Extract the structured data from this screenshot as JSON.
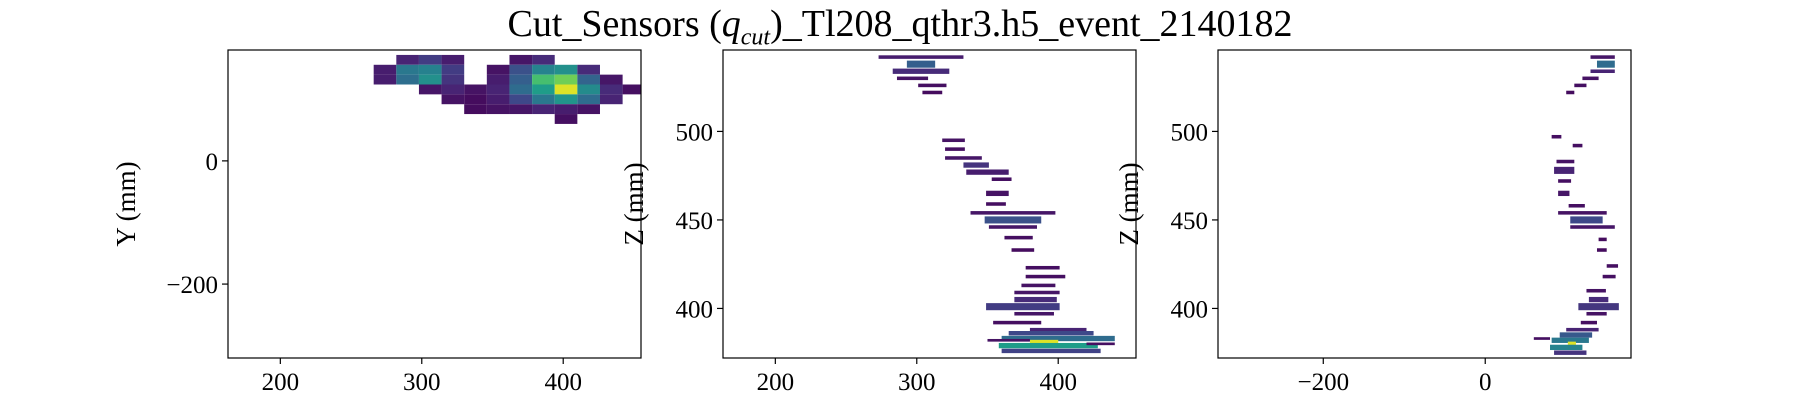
{
  "figure": {
    "title_prefix": "Cut_Sensors (",
    "title_q": "q",
    "title_sub": "cut",
    "title_suffix": ")_Tl208_qthr3.h5_event_2140182"
  },
  "colormap": {
    "name": "viridis",
    "stops": [
      "#440154",
      "#482878",
      "#3e4989",
      "#31688e",
      "#26828e",
      "#1f9e89",
      "#35b779",
      "#6ece58",
      "#b5de2b",
      "#fde725"
    ]
  },
  "chart_data": [
    {
      "type": "heatmap",
      "title": "",
      "xlabel": "",
      "ylabel": "Y (mm)",
      "xlim": [
        163,
        455
      ],
      "ylim": [
        -320,
        180
      ],
      "xticks": [
        200,
        300,
        400
      ],
      "yticks": [
        -200,
        0
      ],
      "cell_size": [
        16,
        16
      ],
      "cells": [
        {
          "x": 290,
          "y": 164,
          "v": 0.1
        },
        {
          "x": 306,
          "y": 164,
          "v": 0.18
        },
        {
          "x": 322,
          "y": 164,
          "v": 0.08
        },
        {
          "x": 370,
          "y": 164,
          "v": 0.06
        },
        {
          "x": 386,
          "y": 164,
          "v": 0.12
        },
        {
          "x": 274,
          "y": 148,
          "v": 0.08
        },
        {
          "x": 290,
          "y": 148,
          "v": 0.4
        },
        {
          "x": 306,
          "y": 148,
          "v": 0.44
        },
        {
          "x": 322,
          "y": 148,
          "v": 0.18
        },
        {
          "x": 354,
          "y": 148,
          "v": 0.05
        },
        {
          "x": 370,
          "y": 148,
          "v": 0.25
        },
        {
          "x": 386,
          "y": 148,
          "v": 0.45
        },
        {
          "x": 402,
          "y": 148,
          "v": 0.5
        },
        {
          "x": 418,
          "y": 148,
          "v": 0.12
        },
        {
          "x": 274,
          "y": 132,
          "v": 0.08
        },
        {
          "x": 290,
          "y": 132,
          "v": 0.36
        },
        {
          "x": 306,
          "y": 132,
          "v": 0.5
        },
        {
          "x": 322,
          "y": 132,
          "v": 0.15
        },
        {
          "x": 354,
          "y": 132,
          "v": 0.08
        },
        {
          "x": 370,
          "y": 132,
          "v": 0.3
        },
        {
          "x": 386,
          "y": 132,
          "v": 0.7
        },
        {
          "x": 402,
          "y": 132,
          "v": 0.78
        },
        {
          "x": 418,
          "y": 132,
          "v": 0.32
        },
        {
          "x": 434,
          "y": 132,
          "v": 0.06
        },
        {
          "x": 306,
          "y": 116,
          "v": 0.06
        },
        {
          "x": 322,
          "y": 116,
          "v": 0.1
        },
        {
          "x": 338,
          "y": 116,
          "v": 0.05
        },
        {
          "x": 354,
          "y": 116,
          "v": 0.1
        },
        {
          "x": 370,
          "y": 116,
          "v": 0.35
        },
        {
          "x": 386,
          "y": 116,
          "v": 0.55
        },
        {
          "x": 402,
          "y": 116,
          "v": 0.95
        },
        {
          "x": 418,
          "y": 116,
          "v": 0.48
        },
        {
          "x": 434,
          "y": 116,
          "v": 0.12
        },
        {
          "x": 450,
          "y": 116,
          "v": 0.04
        },
        {
          "x": 322,
          "y": 100,
          "v": 0.05
        },
        {
          "x": 338,
          "y": 100,
          "v": 0.03
        },
        {
          "x": 354,
          "y": 100,
          "v": 0.08
        },
        {
          "x": 370,
          "y": 100,
          "v": 0.22
        },
        {
          "x": 386,
          "y": 100,
          "v": 0.4
        },
        {
          "x": 402,
          "y": 100,
          "v": 0.52
        },
        {
          "x": 418,
          "y": 100,
          "v": 0.35
        },
        {
          "x": 434,
          "y": 100,
          "v": 0.1
        },
        {
          "x": 338,
          "y": 84,
          "v": 0.03
        },
        {
          "x": 354,
          "y": 84,
          "v": 0.05
        },
        {
          "x": 370,
          "y": 84,
          "v": 0.06
        },
        {
          "x": 386,
          "y": 84,
          "v": 0.1
        },
        {
          "x": 402,
          "y": 84,
          "v": 0.08
        },
        {
          "x": 418,
          "y": 84,
          "v": 0.05
        },
        {
          "x": 402,
          "y": 68,
          "v": 0.04
        }
      ]
    },
    {
      "type": "heatmap",
      "title": "",
      "xlabel": "",
      "ylabel": "Z (mm)",
      "xlim": [
        163,
        455
      ],
      "ylim": [
        372,
        546
      ],
      "xticks": [
        200,
        300,
        400
      ],
      "yticks": [
        400,
        450,
        500
      ],
      "cells": [
        {
          "x": 273,
          "w": 60,
          "y": 542,
          "h": 2.0,
          "v": 0.08
        },
        {
          "x": 293,
          "w": 20,
          "y": 538,
          "h": 4.0,
          "v": 0.3
        },
        {
          "x": 283,
          "w": 40,
          "y": 534,
          "h": 3.0,
          "v": 0.12
        },
        {
          "x": 286,
          "w": 22,
          "y": 530,
          "h": 2.0,
          "v": 0.05
        },
        {
          "x": 301,
          "w": 20,
          "y": 526,
          "h": 2.0,
          "v": 0.04
        },
        {
          "x": 304,
          "w": 14,
          "y": 522,
          "h": 2.0,
          "v": 0.03
        },
        {
          "x": 318,
          "w": 16,
          "y": 495,
          "h": 2.0,
          "v": 0.05
        },
        {
          "x": 320,
          "w": 14,
          "y": 490,
          "h": 2.0,
          "v": 0.04
        },
        {
          "x": 320,
          "w": 26,
          "y": 485,
          "h": 2.0,
          "v": 0.06
        },
        {
          "x": 333,
          "w": 18,
          "y": 481,
          "h": 3.0,
          "v": 0.15
        },
        {
          "x": 335,
          "w": 30,
          "y": 477,
          "h": 3.0,
          "v": 0.08
        },
        {
          "x": 353,
          "w": 14,
          "y": 473,
          "h": 2.0,
          "v": 0.04
        },
        {
          "x": 349,
          "w": 16,
          "y": 465,
          "h": 3.0,
          "v": 0.05
        },
        {
          "x": 349,
          "w": 14,
          "y": 459,
          "h": 2.0,
          "v": 0.04
        },
        {
          "x": 338,
          "w": 60,
          "y": 454,
          "h": 2.0,
          "v": 0.06
        },
        {
          "x": 348,
          "w": 40,
          "y": 450,
          "h": 4.0,
          "v": 0.25
        },
        {
          "x": 351,
          "w": 34,
          "y": 446,
          "h": 2.0,
          "v": 0.06
        },
        {
          "x": 362,
          "w": 20,
          "y": 440,
          "h": 2.0,
          "v": 0.04
        },
        {
          "x": 367,
          "w": 16,
          "y": 433,
          "h": 2.0,
          "v": 0.03
        },
        {
          "x": 377,
          "w": 24,
          "y": 423,
          "h": 2.0,
          "v": 0.04
        },
        {
          "x": 377,
          "w": 28,
          "y": 418,
          "h": 2.0,
          "v": 0.04
        },
        {
          "x": 374,
          "w": 24,
          "y": 413,
          "h": 2.0,
          "v": 0.05
        },
        {
          "x": 369,
          "w": 32,
          "y": 409,
          "h": 2.0,
          "v": 0.06
        },
        {
          "x": 369,
          "w": 30,
          "y": 405,
          "h": 3.0,
          "v": 0.12
        },
        {
          "x": 349,
          "w": 52,
          "y": 401,
          "h": 4.0,
          "v": 0.18
        },
        {
          "x": 369,
          "w": 28,
          "y": 397,
          "h": 2.0,
          "v": 0.06
        },
        {
          "x": 354,
          "w": 34,
          "y": 392,
          "h": 2.0,
          "v": 0.04
        },
        {
          "x": 380,
          "w": 40,
          "y": 388,
          "h": 2.0,
          "v": 0.1
        },
        {
          "x": 365,
          "w": 60,
          "y": 386,
          "h": 2.5,
          "v": 0.22
        },
        {
          "x": 360,
          "w": 80,
          "y": 383,
          "h": 3.0,
          "v": 0.35
        },
        {
          "x": 380,
          "w": 20,
          "y": 381,
          "h": 2.5,
          "v": 0.95
        },
        {
          "x": 358,
          "w": 70,
          "y": 379,
          "h": 3.0,
          "v": 0.55
        },
        {
          "x": 360,
          "w": 70,
          "y": 376,
          "h": 2.5,
          "v": 0.2
        },
        {
          "x": 350,
          "w": 30,
          "y": 382,
          "h": 1.5,
          "v": 0.05
        },
        {
          "x": 420,
          "w": 20,
          "y": 380,
          "h": 1.5,
          "v": 0.04
        }
      ]
    },
    {
      "type": "heatmap",
      "title": "",
      "xlabel": "",
      "ylabel": "Z (mm)",
      "xlim": [
        -330,
        180
      ],
      "ylim": [
        372,
        546
      ],
      "xticks": [
        -200,
        0
      ],
      "yticks": [
        400,
        450,
        500
      ],
      "cells": [
        {
          "x": 130,
          "w": 30,
          "y": 542,
          "h": 2.0,
          "v": 0.06
        },
        {
          "x": 138,
          "w": 22,
          "y": 538,
          "h": 4.0,
          "v": 0.35
        },
        {
          "x": 130,
          "w": 30,
          "y": 534,
          "h": 2.0,
          "v": 0.1
        },
        {
          "x": 120,
          "w": 20,
          "y": 530,
          "h": 2.0,
          "v": 0.05
        },
        {
          "x": 110,
          "w": 15,
          "y": 526,
          "h": 2.0,
          "v": 0.04
        },
        {
          "x": 100,
          "w": 10,
          "y": 522,
          "h": 2.0,
          "v": 0.03
        },
        {
          "x": 82,
          "w": 12,
          "y": 497,
          "h": 2.0,
          "v": 0.04
        },
        {
          "x": 108,
          "w": 12,
          "y": 492,
          "h": 2.0,
          "v": 0.04
        },
        {
          "x": 88,
          "w": 22,
          "y": 483,
          "h": 2.0,
          "v": 0.05
        },
        {
          "x": 85,
          "w": 25,
          "y": 478,
          "h": 4.0,
          "v": 0.1
        },
        {
          "x": 90,
          "w": 16,
          "y": 472,
          "h": 2.0,
          "v": 0.04
        },
        {
          "x": 90,
          "w": 14,
          "y": 465,
          "h": 3.0,
          "v": 0.06
        },
        {
          "x": 103,
          "w": 20,
          "y": 458,
          "h": 2.0,
          "v": 0.04
        },
        {
          "x": 90,
          "w": 60,
          "y": 454,
          "h": 2.0,
          "v": 0.05
        },
        {
          "x": 105,
          "w": 40,
          "y": 450,
          "h": 4.0,
          "v": 0.22
        },
        {
          "x": 105,
          "w": 55,
          "y": 446,
          "h": 2.0,
          "v": 0.06
        },
        {
          "x": 140,
          "w": 10,
          "y": 439,
          "h": 2.0,
          "v": 0.03
        },
        {
          "x": 138,
          "w": 12,
          "y": 433,
          "h": 2.0,
          "v": 0.03
        },
        {
          "x": 150,
          "w": 14,
          "y": 424,
          "h": 2.0,
          "v": 0.04
        },
        {
          "x": 145,
          "w": 16,
          "y": 418,
          "h": 2.0,
          "v": 0.04
        },
        {
          "x": 125,
          "w": 24,
          "y": 410,
          "h": 2.0,
          "v": 0.05
        },
        {
          "x": 128,
          "w": 24,
          "y": 405,
          "h": 3.0,
          "v": 0.12
        },
        {
          "x": 115,
          "w": 50,
          "y": 401,
          "h": 4.0,
          "v": 0.16
        },
        {
          "x": 125,
          "w": 25,
          "y": 397,
          "h": 2.0,
          "v": 0.05
        },
        {
          "x": 118,
          "w": 20,
          "y": 392,
          "h": 2.0,
          "v": 0.04
        },
        {
          "x": 100,
          "w": 40,
          "y": 388,
          "h": 2.0,
          "v": 0.1
        },
        {
          "x": 92,
          "w": 40,
          "y": 385,
          "h": 3.0,
          "v": 0.28
        },
        {
          "x": 82,
          "w": 46,
          "y": 382,
          "h": 3.0,
          "v": 0.4
        },
        {
          "x": 102,
          "w": 10,
          "y": 380,
          "h": 2.5,
          "v": 0.95
        },
        {
          "x": 80,
          "w": 40,
          "y": 378,
          "h": 3.0,
          "v": 0.45
        },
        {
          "x": 85,
          "w": 40,
          "y": 375,
          "h": 2.5,
          "v": 0.15
        },
        {
          "x": 60,
          "w": 20,
          "y": 383,
          "h": 1.5,
          "v": 0.04
        }
      ]
    }
  ]
}
